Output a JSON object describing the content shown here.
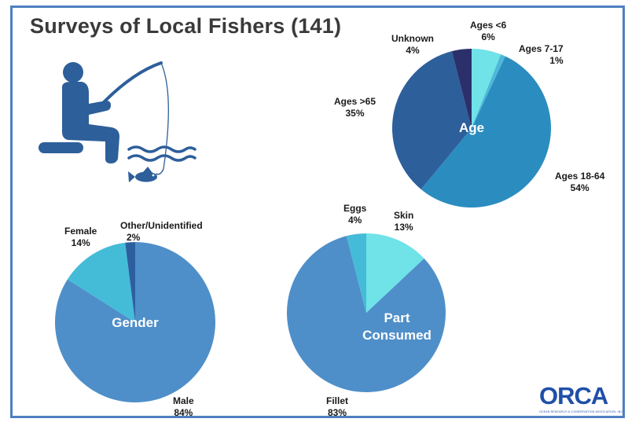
{
  "title": "Surveys of Local Fishers (141)",
  "icon": "person-fishing-icon",
  "logo": {
    "word": "ORCA",
    "tagline": "OCEAN RESEARCH & CONSERVATION ASSOCIATION, INC.",
    "color": "#1f4fa8"
  },
  "chart_data": [
    {
      "type": "pie",
      "center_label": "Age",
      "slices": [
        {
          "label": "Ages <6",
          "value": 6,
          "pct": "6%",
          "color": "#6fe3e8"
        },
        {
          "label": "Ages 7-17",
          "value": 1,
          "pct": "1%",
          "color": "#4db8d8"
        },
        {
          "label": "Ages 18-64",
          "value": 54,
          "pct": "54%",
          "color": "#2b8cc0"
        },
        {
          "label": "Ages >65",
          "value": 35,
          "pct": "35%",
          "color": "#2d5f9a"
        },
        {
          "label": "Unknown",
          "value": 4,
          "pct": "4%",
          "color": "#2b2f6a"
        }
      ]
    },
    {
      "type": "pie",
      "center_label": "Gender",
      "slices": [
        {
          "label": "Male",
          "value": 84,
          "pct": "84%",
          "color": "#4f8fc9"
        },
        {
          "label": "Female",
          "value": 14,
          "pct": "14%",
          "color": "#44bcd8"
        },
        {
          "label": "Other/Unidentified",
          "value": 2,
          "pct": "2%",
          "color": "#2d5fa0"
        }
      ]
    },
    {
      "type": "pie",
      "center_label": "Part Consumed",
      "center_label_lines": [
        "Part",
        "Consumed"
      ],
      "slices": [
        {
          "label": "Skin",
          "value": 13,
          "pct": "13%",
          "color": "#6fe3e8"
        },
        {
          "label": "Fillet",
          "value": 83,
          "pct": "83%",
          "color": "#4f8fc9"
        },
        {
          "label": "Eggs",
          "value": 4,
          "pct": "4%",
          "color": "#44bcd8"
        }
      ]
    }
  ]
}
